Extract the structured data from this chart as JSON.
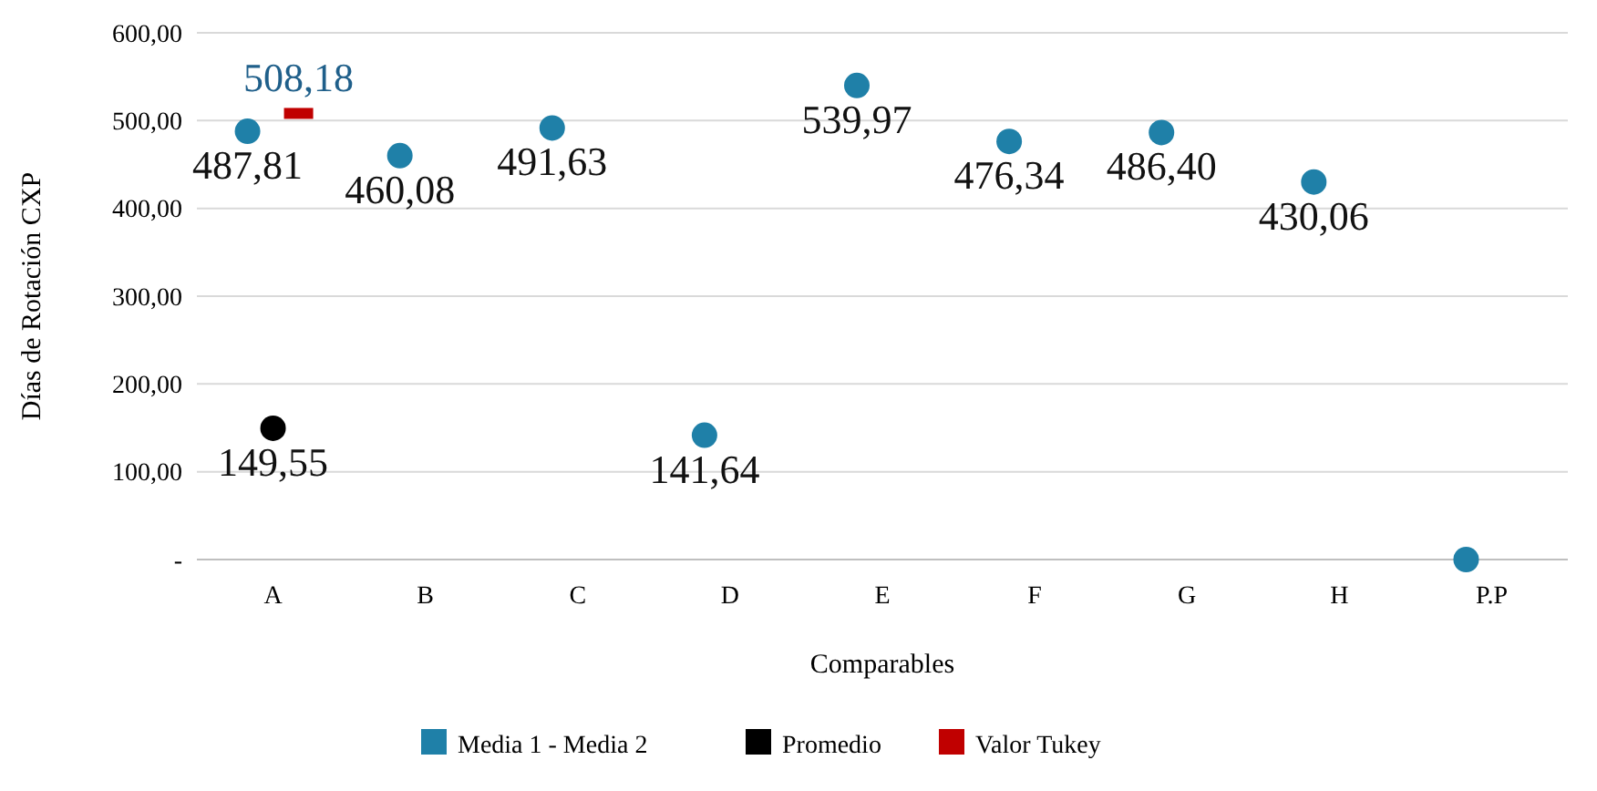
{
  "chart_data": {
    "type": "scatter",
    "xlabel": "Comparables",
    "ylabel": "Días de Rotación CXP",
    "categories": [
      "A",
      "B",
      "C",
      "D",
      "E",
      "F",
      "G",
      "H",
      "P.P"
    ],
    "ylim": [
      0,
      600
    ],
    "yticks": [
      {
        "value": 0,
        "label": "-"
      },
      {
        "value": 100,
        "label": "100,00"
      },
      {
        "value": 200,
        "label": "200,00"
      },
      {
        "value": 300,
        "label": "300,00"
      },
      {
        "value": 400,
        "label": "400,00"
      },
      {
        "value": 500,
        "label": "500,00"
      },
      {
        "value": 600,
        "label": "600,00"
      }
    ],
    "grid": "y",
    "legend": "bottom",
    "series": [
      {
        "name": "Media 1 - Media 2",
        "color": "#1f80a8",
        "marker": "circle",
        "values": [
          487.81,
          460.08,
          491.63,
          141.64,
          539.97,
          476.34,
          486.4,
          430.06,
          0
        ],
        "value_labels": [
          "487,81",
          "460,08",
          "491,63",
          "141,64",
          "539,97",
          "476,34",
          "486,40",
          "430,06",
          null
        ]
      },
      {
        "name": "Promedio",
        "color": "#000000",
        "marker": "circle",
        "values": [
          149.55,
          null,
          null,
          null,
          null,
          null,
          null,
          null,
          null
        ],
        "value_labels": [
          "149,55",
          null,
          null,
          null,
          null,
          null,
          null,
          null,
          null
        ]
      },
      {
        "name": "Valor Tukey",
        "color": "#c00000",
        "marker": "square",
        "values": [
          508.18,
          null,
          null,
          null,
          null,
          null,
          null,
          null,
          null
        ],
        "value_labels": [
          "508,18",
          null,
          null,
          null,
          null,
          null,
          null,
          null,
          null
        ]
      }
    ]
  }
}
